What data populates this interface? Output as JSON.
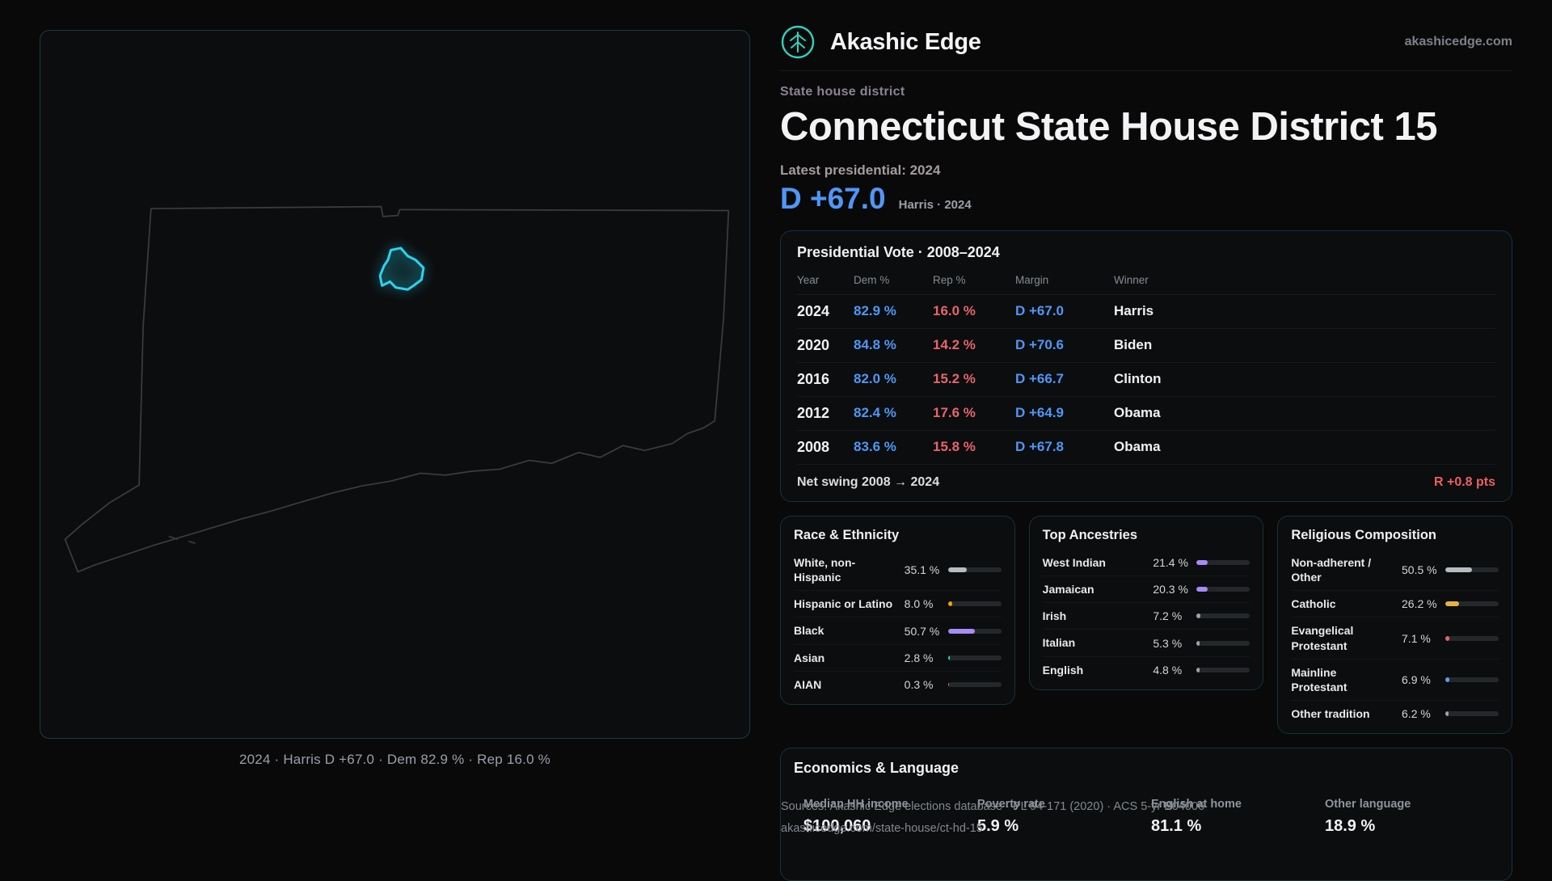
{
  "header": {
    "brand": "Akashic Edge",
    "domain": "akashicedge.com"
  },
  "hero": {
    "kicker": "State house district",
    "title": "Connecticut State House District 15",
    "latest_label": "Latest presidential: 2024",
    "margin": "D +67.0",
    "margin_sub": "Harris · 2024"
  },
  "map": {
    "caption": "2024 · Harris D +67.0 · Dem 82.9 % · Rep 16.0 %",
    "highlight_color": "#29d3ee",
    "outline_color": "#3a3d40"
  },
  "presidential": {
    "title": "Presidential Vote · 2008–2024",
    "columns": [
      "Year",
      "Dem %",
      "Rep %",
      "Margin",
      "Winner"
    ],
    "rows": [
      {
        "year": "2024",
        "dem": "82.9 %",
        "rep": "16.0 %",
        "margin": "D +67.0",
        "winner": "Harris"
      },
      {
        "year": "2020",
        "dem": "84.8 %",
        "rep": "14.2 %",
        "margin": "D +70.6",
        "winner": "Biden"
      },
      {
        "year": "2016",
        "dem": "82.0 %",
        "rep": "15.2 %",
        "margin": "D +66.7",
        "winner": "Clinton"
      },
      {
        "year": "2012",
        "dem": "82.4 %",
        "rep": "17.6 %",
        "margin": "D +64.9",
        "winner": "Obama"
      },
      {
        "year": "2008",
        "dem": "83.6 %",
        "rep": "15.8 %",
        "margin": "D +67.8",
        "winner": "Obama"
      }
    ],
    "net_swing_label": "Net swing 2008 → 2024",
    "net_swing_value": "R +0.8 pts"
  },
  "race": {
    "title": "Race & Ethnicity",
    "rows": [
      {
        "label": "White, non-Hispanic",
        "value": "35.1 %",
        "pct": 35.1,
        "color": "#b6bcc2"
      },
      {
        "label": "Hispanic or Latino",
        "value": "8.0 %",
        "pct": 8.0,
        "color": "#f59e0b"
      },
      {
        "label": "Black",
        "value": "50.7 %",
        "pct": 50.7,
        "color": "#a78bfa"
      },
      {
        "label": "Asian",
        "value": "2.8 %",
        "pct": 2.8,
        "color": "#2dd4bf"
      },
      {
        "label": "AIAN",
        "value": "0.3 %",
        "pct": 0.3,
        "color": "#ef6a5a"
      }
    ]
  },
  "ancestries": {
    "title": "Top Ancestries",
    "rows": [
      {
        "label": "West Indian",
        "value": "21.4 %",
        "pct": 21.4,
        "color": "#a78bfa"
      },
      {
        "label": "Jamaican",
        "value": "20.3 %",
        "pct": 20.3,
        "color": "#a78bfa"
      },
      {
        "label": "Irish",
        "value": "7.2 %",
        "pct": 7.2,
        "color": "#9ca3af"
      },
      {
        "label": "Italian",
        "value": "5.3 %",
        "pct": 5.3,
        "color": "#9ca3af"
      },
      {
        "label": "English",
        "value": "4.8 %",
        "pct": 4.8,
        "color": "#9ca3af"
      }
    ]
  },
  "religion": {
    "title": "Religious Composition",
    "rows": [
      {
        "label": "Non-adherent / Other",
        "value": "50.5 %",
        "pct": 50.5,
        "color": "#b6bcc2"
      },
      {
        "label": "Catholic",
        "value": "26.2 %",
        "pct": 26.2,
        "color": "#e8b33c"
      },
      {
        "label": "Evangelical Protestant",
        "value": "7.1 %",
        "pct": 7.1,
        "color": "#e06a5e"
      },
      {
        "label": "Mainline Protestant",
        "value": "6.9 %",
        "pct": 6.9,
        "color": "#5b9df9"
      },
      {
        "label": "Other tradition",
        "value": "6.2 %",
        "pct": 6.2,
        "color": "#9ca3af"
      }
    ]
  },
  "economics": {
    "title": "Economics & Language",
    "stats": [
      {
        "label": "Median HH income",
        "value": "$100,060"
      },
      {
        "label": "Poverty rate",
        "value": "5.9 %"
      },
      {
        "label": "English at home",
        "value": "81.1 %"
      },
      {
        "label": "Other language",
        "value": "18.9 %"
      }
    ]
  },
  "footer": {
    "sources": "Sources: Akashic Edge elections database · PL 94-171 (2020) · ACS 5-yr B04006",
    "permalink": "akashicedge.com/state-house/ct-hd-15"
  }
}
